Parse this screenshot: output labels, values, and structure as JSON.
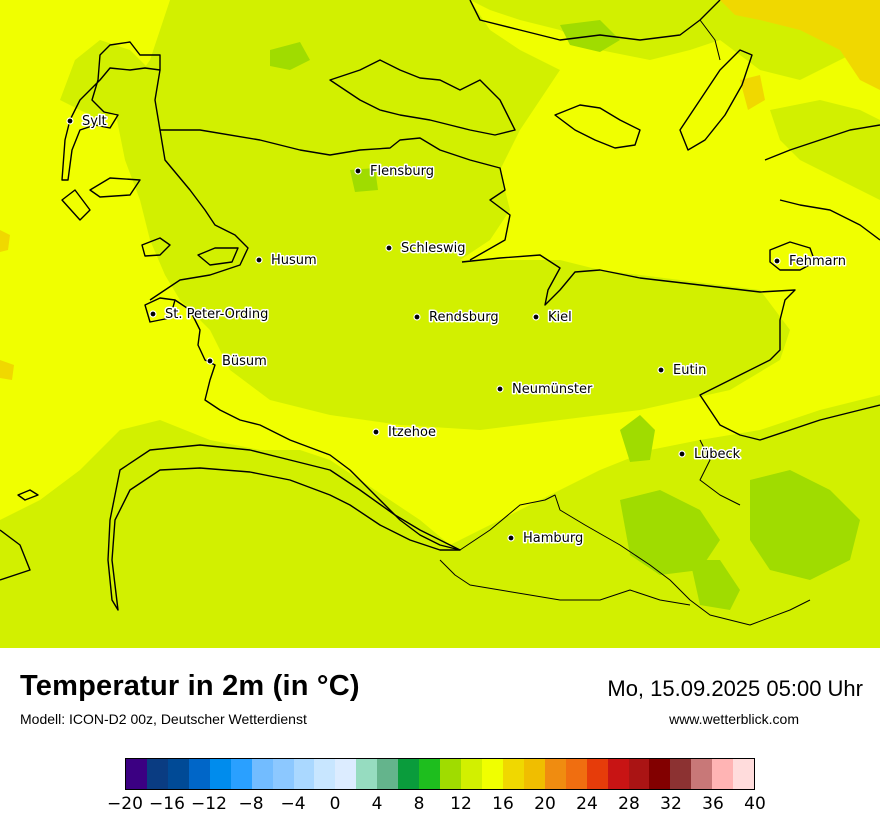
{
  "title": "Temperatur in 2m (in °C)",
  "model_line": "Modell: ICON-D2 00z, Deutscher Wetterdienst",
  "datetime": "Mo, 15.09.2025 05:00 Uhr",
  "website": "www.wetterblick.com",
  "cities": [
    {
      "name": "Sylt"
    },
    {
      "name": "Flensburg"
    },
    {
      "name": "Husum"
    },
    {
      "name": "Schleswig"
    },
    {
      "name": "Fehmarn"
    },
    {
      "name": "St. Peter-Ording"
    },
    {
      "name": "Rendsburg"
    },
    {
      "name": "Kiel"
    },
    {
      "name": "Büsum"
    },
    {
      "name": "Eutin"
    },
    {
      "name": "Neumünster"
    },
    {
      "name": "Itzehoe"
    },
    {
      "name": "Lübeck"
    },
    {
      "name": "Hamburg"
    }
  ],
  "legend": {
    "unit": "°C",
    "colors": [
      "#3b0082",
      "#0a3c82",
      "#004a96",
      "#0066c8",
      "#008ced",
      "#2aa0ff",
      "#72bcff",
      "#8cc8ff",
      "#aad8ff",
      "#c8e6ff",
      "#dcecff",
      "#96dcc0",
      "#64b48c",
      "#0a9c3c",
      "#1ebe1e",
      "#a0dc00",
      "#d2f000",
      "#f0ff00",
      "#f0d800",
      "#f0be00",
      "#f08c10",
      "#f06e10",
      "#e63c0a",
      "#c81414",
      "#aa1414",
      "#820000",
      "#8c3232",
      "#c87878",
      "#ffb4b4",
      "#ffdcdc"
    ],
    "ticks": [
      "−20",
      "−16",
      "−12",
      "−8",
      "−4",
      "0",
      "4",
      "8",
      "12",
      "16",
      "20",
      "24",
      "28",
      "32",
      "36",
      "40"
    ]
  },
  "map_colors": {
    "temp_14_16": "#d2f000",
    "temp_16_18": "#f0ff00",
    "temp_12_14": "#a0dc00",
    "temp_18_20": "#f0d800",
    "coastline": "#000000"
  }
}
